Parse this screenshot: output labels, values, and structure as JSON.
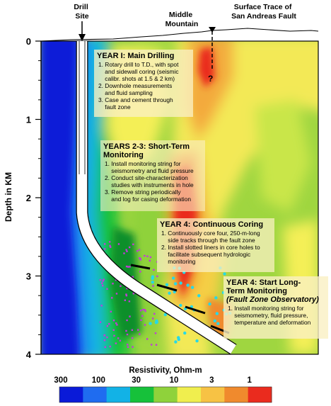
{
  "labels": {
    "drill_site": [
      "Drill",
      "Site"
    ],
    "middle_mountain": [
      "Middle",
      "Mountain"
    ],
    "fault_trace": [
      "Surface Trace of",
      "San Andreas Fault"
    ],
    "fault_query": "?"
  },
  "axis": {
    "ylabel": "Depth in KM",
    "ticks": [
      "0",
      "1",
      "2",
      "3",
      "4"
    ]
  },
  "colorbar": {
    "title": "Resistivity, Ohm-m",
    "tick_labels": [
      "300",
      "100",
      "30",
      "10",
      "3",
      "1"
    ],
    "colors": [
      "#0a1ad8",
      "#1f6cf0",
      "#12b2e6",
      "#16c13a",
      "#8fd23b",
      "#f0ee4e",
      "#f7c244",
      "#f08a2d",
      "#ea2b1e"
    ]
  },
  "phases": [
    {
      "title": "YEAR I: Main Drilling",
      "items": [
        "1. Rotary drill to T.D., with spot",
        "    and sidewall coring (seismic",
        "    calibr. shots at 1.5 & 2 km)",
        "2. Downhole measurements",
        "    and fluid sampling",
        "3. Case and cement through",
        "    fault zone"
      ]
    },
    {
      "title": "YEARS 2-3: Short-Term",
      "title2": "Monitoring",
      "items": [
        "1. Install monitoring string for",
        "    seismometry and fluid pressure",
        "2. Conduct site-characterization",
        "    studies with instruments in hole",
        "3. Remove string periodically",
        "    and log for casing deformation"
      ]
    },
    {
      "title": "YEAR 4: Continuous Coring",
      "items": [
        "1. Continuously core four, 250-m-long",
        "    side tracks through the fault zone",
        "2. Install slotted liners in core holes to",
        "    facilitate subsequent hydrologic",
        "    monitoring"
      ]
    },
    {
      "title": "YEAR 4: Start Long-",
      "title2": "Term Monitoring",
      "title3": "(Fault Zone Observatory)",
      "items": [
        "1. Install monitoring string for",
        "    seismometry, fluid pressure,",
        "    temperature and deformation"
      ]
    }
  ]
}
